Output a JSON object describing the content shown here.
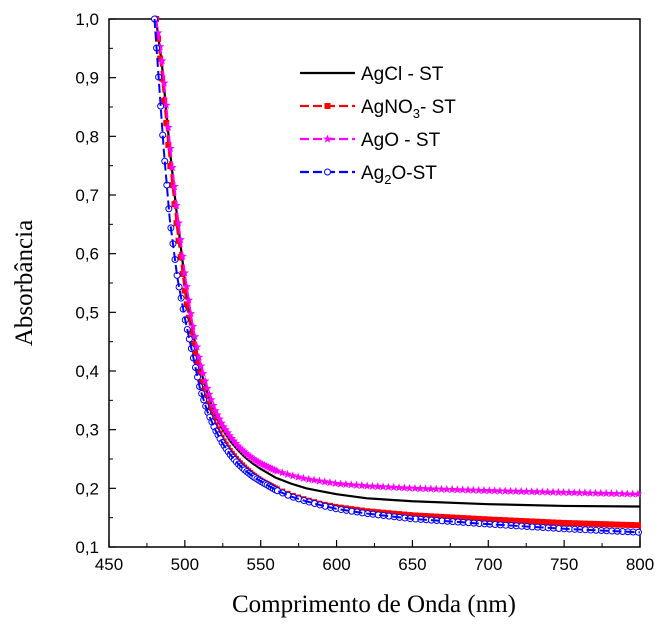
{
  "chart_data": {
    "type": "line",
    "title": "",
    "xlabel": "Comprimento de Onda (nm)",
    "ylabel": "Absorbância",
    "xlim": [
      450,
      800
    ],
    "ylim": [
      0.1,
      1.0
    ],
    "x_ticks": [
      "450",
      "500",
      "550",
      "600",
      "650",
      "700",
      "750",
      "800"
    ],
    "y_ticks": [
      "0,1",
      "0,2",
      "0,3",
      "0,4",
      "0,5",
      "0,6",
      "0,7",
      "0,8",
      "0,9",
      "1,0"
    ],
    "grid": false,
    "legend_position": "top-right",
    "series": [
      {
        "name": "AgCl - ST",
        "name_parts": [
          [
            "AgCl - ST",
            false
          ]
        ],
        "color": "#000000",
        "style": "solid",
        "marker": "none",
        "x": [
          481,
          485,
          490,
          495,
          500,
          505,
          510,
          515,
          520,
          525,
          530,
          535,
          540,
          545,
          550,
          560,
          570,
          580,
          590,
          600,
          620,
          650,
          700,
          750,
          800
        ],
        "y": [
          1.0,
          0.92,
          0.78,
          0.66,
          0.555,
          0.47,
          0.405,
          0.36,
          0.325,
          0.3,
          0.28,
          0.265,
          0.252,
          0.242,
          0.233,
          0.218,
          0.208,
          0.2,
          0.195,
          0.19,
          0.183,
          0.178,
          0.173,
          0.17,
          0.169
        ]
      },
      {
        "name": "AgNO3- ST",
        "name_parts": [
          [
            "AgNO",
            false
          ],
          [
            "3",
            true
          ],
          [
            "- ST",
            false
          ]
        ],
        "color": "#ff0000",
        "style": "dash",
        "marker": "square",
        "x": [
          481,
          485,
          490,
          495,
          500,
          505,
          510,
          515,
          520,
          525,
          530,
          535,
          540,
          545,
          550,
          560,
          570,
          580,
          590,
          600,
          620,
          650,
          700,
          750,
          800
        ],
        "y": [
          1.0,
          0.9,
          0.76,
          0.64,
          0.535,
          0.45,
          0.388,
          0.342,
          0.308,
          0.282,
          0.262,
          0.246,
          0.233,
          0.222,
          0.213,
          0.199,
          0.188,
          0.18,
          0.173,
          0.168,
          0.161,
          0.154,
          0.147,
          0.141,
          0.137
        ]
      },
      {
        "name": "AgO - ST",
        "name_parts": [
          [
            "AgO - ST",
            false
          ]
        ],
        "color": "#ff00ff",
        "style": "dash",
        "marker": "star",
        "x": [
          481,
          485,
          490,
          495,
          500,
          505,
          510,
          515,
          520,
          525,
          530,
          535,
          540,
          545,
          550,
          560,
          570,
          580,
          590,
          600,
          620,
          650,
          700,
          750,
          800
        ],
        "y": [
          1.0,
          0.93,
          0.79,
          0.67,
          0.565,
          0.48,
          0.415,
          0.368,
          0.333,
          0.307,
          0.288,
          0.272,
          0.26,
          0.25,
          0.242,
          0.23,
          0.222,
          0.216,
          0.212,
          0.208,
          0.204,
          0.2,
          0.196,
          0.193,
          0.19
        ]
      },
      {
        "name": "Ag2O-ST",
        "name_parts": [
          [
            "Ag",
            false
          ],
          [
            "2",
            true
          ],
          [
            "O-ST",
            false
          ]
        ],
        "color": "#0000ff",
        "style": "dash",
        "marker": "circle",
        "x": [
          480,
          483,
          486,
          490,
          495,
          500,
          505,
          510,
          515,
          520,
          525,
          530,
          535,
          540,
          545,
          550,
          560,
          570,
          580,
          590,
          600,
          620,
          650,
          700,
          750,
          800
        ],
        "y": [
          1.0,
          0.89,
          0.78,
          0.66,
          0.56,
          0.49,
          0.43,
          0.37,
          0.33,
          0.3,
          0.276,
          0.257,
          0.242,
          0.23,
          0.22,
          0.212,
          0.197,
          0.186,
          0.178,
          0.171,
          0.165,
          0.157,
          0.148,
          0.139,
          0.131,
          0.125
        ]
      }
    ]
  }
}
